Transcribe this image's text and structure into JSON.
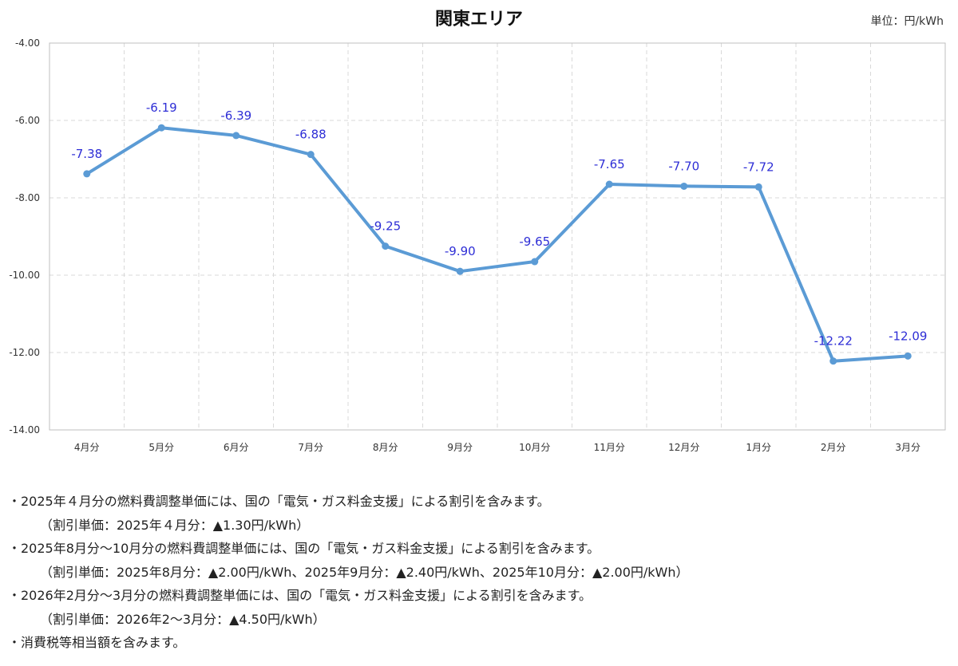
{
  "title": "関東エリア",
  "unit": "単位：円/kWh",
  "chart_data": {
    "type": "line",
    "title": "関東エリア",
    "unit": "円/kWh",
    "categories": [
      "4月分",
      "5月分",
      "6月分",
      "7月分",
      "8月分",
      "9月分",
      "10月分",
      "11月分",
      "12月分",
      "1月分",
      "2月分",
      "3月分"
    ],
    "values": [
      -7.38,
      -6.19,
      -6.39,
      -6.88,
      -9.25,
      -9.9,
      -9.65,
      -7.65,
      -7.7,
      -7.72,
      -12.22,
      -12.09
    ],
    "data_labels": [
      "-7.38",
      "-6.19",
      "-6.39",
      "-6.88",
      "-9.25",
      "-9.90",
      "-9.65",
      "-7.65",
      "-7.70",
      "-7.72",
      "-12.22",
      "-12.09"
    ],
    "ylim": [
      -14,
      -4
    ],
    "yticks": [
      "-4.00",
      "-6.00",
      "-8.00",
      "-10.00",
      "-12.00",
      "-14.00"
    ],
    "grid": true,
    "line_color": "#5b9bd5",
    "label_color": "#2e2ed6",
    "legend": "none"
  },
  "notes": [
    "・2025年４月分の燃料費調整単価には、国の「電気・ガス料金支援」による割引を含みます。",
    "（割引単価：2025年４月分：▲1.30円/kWh）",
    "・2025年8月分～10月分の燃料費調整単価には、国の「電気・ガス料金支援」による割引を含みます。",
    "（割引単価：2025年8月分：▲2.00円/kWh、2025年9月分：▲2.40円/kWh、2025年10月分：▲2.00円/kWh）",
    "・2026年2月分～3月分の燃料費調整単価には、国の「電気・ガス料金支援」による割引を含みます。",
    "（割引単価：2026年2～3月分：▲4.50円/kWh）",
    "・消費税等相当額を含みます。"
  ]
}
